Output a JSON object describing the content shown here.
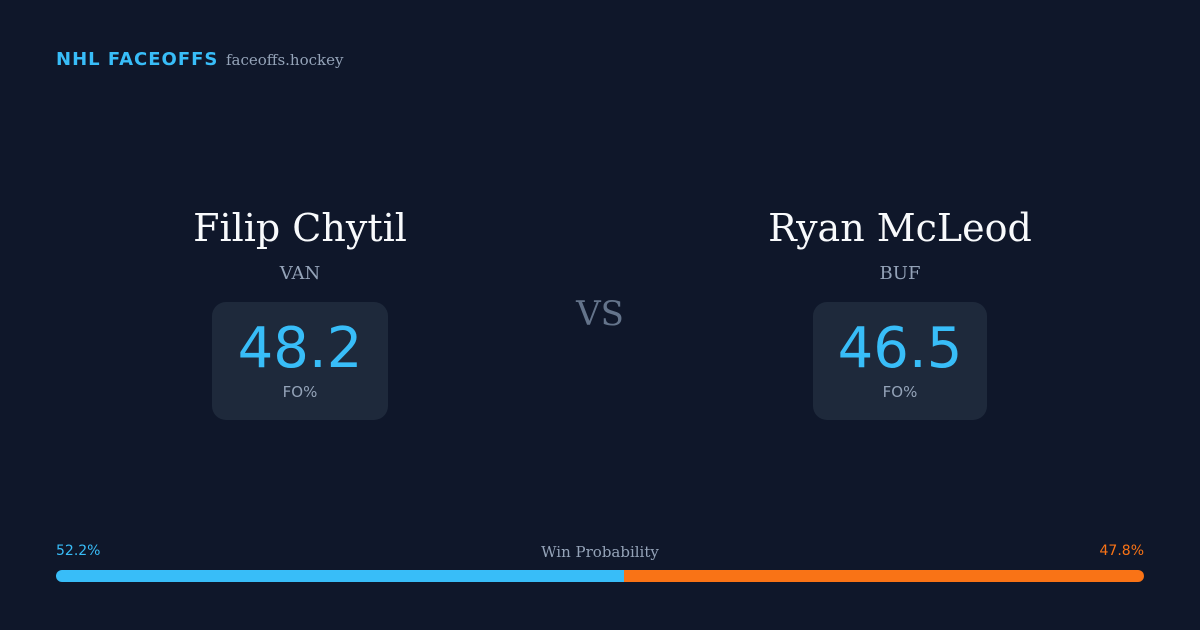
{
  "header": {
    "title": "NHL FACEOFFS",
    "site": "faceoffs.hockey"
  },
  "players": [
    {
      "name": "Filip Chytil",
      "team": "VAN",
      "stat": 48.2,
      "stat_label": "FO%"
    },
    {
      "name": "Ryan McLeod",
      "team": "BUF",
      "stat": 46.5,
      "stat_label": "FO%"
    }
  ],
  "vs": "VS",
  "win_probability": {
    "label": "Win Probability",
    "values": [
      52.2,
      47.8
    ],
    "value_labels": [
      "52.2%",
      "47.8%"
    ],
    "colors": [
      "#38bdf8",
      "#f97316"
    ]
  }
}
